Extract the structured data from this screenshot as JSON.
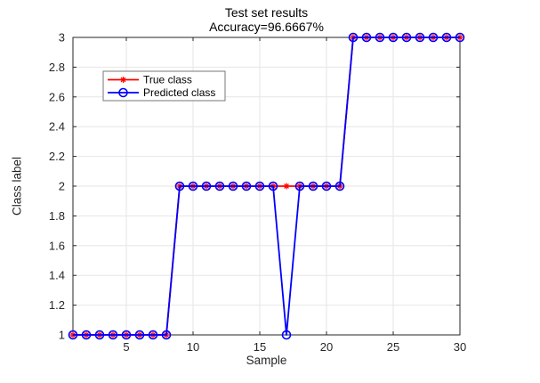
{
  "chart_data": {
    "type": "line",
    "title": "Test set results",
    "subtitle": "Accuracy=96.6667%",
    "xlabel": "Sample",
    "ylabel": "Class label",
    "x": [
      1,
      2,
      3,
      4,
      5,
      6,
      7,
      8,
      9,
      10,
      11,
      12,
      13,
      14,
      15,
      16,
      17,
      18,
      19,
      20,
      21,
      22,
      23,
      24,
      25,
      26,
      27,
      28,
      29,
      30
    ],
    "series": [
      {
        "name": "True class",
        "color": "#ff0000",
        "marker": "asterisk",
        "values": [
          1,
          1,
          1,
          1,
          1,
          1,
          1,
          1,
          2,
          2,
          2,
          2,
          2,
          2,
          2,
          2,
          2,
          2,
          2,
          2,
          2,
          3,
          3,
          3,
          3,
          3,
          3,
          3,
          3,
          3
        ]
      },
      {
        "name": "Predicted class",
        "color": "#0000ff",
        "marker": "circle",
        "values": [
          1,
          1,
          1,
          1,
          1,
          1,
          1,
          1,
          2,
          2,
          2,
          2,
          2,
          2,
          2,
          2,
          1,
          2,
          2,
          2,
          2,
          3,
          3,
          3,
          3,
          3,
          3,
          3,
          3,
          3
        ]
      }
    ],
    "xlim": [
      1,
      30
    ],
    "ylim": [
      1,
      3
    ],
    "xticks": [
      5,
      10,
      15,
      20,
      25,
      30
    ],
    "xtick_labels": [
      "5",
      "10",
      "15",
      "20",
      "25",
      "30"
    ],
    "yticks": [
      1,
      1.2,
      1.4,
      1.6,
      1.8,
      2,
      2.2,
      2.4,
      2.6,
      2.8,
      3
    ],
    "ytick_labels": [
      "1",
      "1.2",
      "1.4",
      "1.6",
      "1.8",
      "2",
      "2.2",
      "2.4",
      "2.6",
      "2.8",
      "3"
    ],
    "grid": true,
    "legend": {
      "position": "upper-left"
    },
    "colors": {
      "axis": "#262626",
      "tick_label": "#262626",
      "grid": "#e6e6e6",
      "legend_border": "#777777",
      "legend_text": "#000000",
      "background": "#ffffff"
    }
  }
}
